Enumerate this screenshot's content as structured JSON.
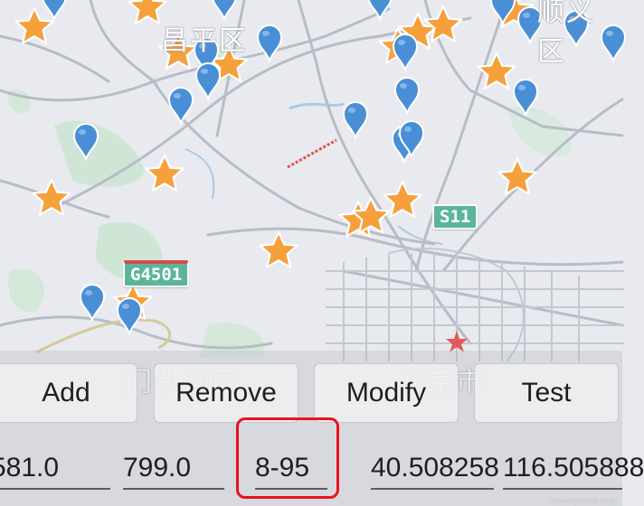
{
  "map": {
    "district_labels": [
      {
        "id": "changping",
        "text": "昌平区"
      },
      {
        "id": "shunyi",
        "text": "顺义区"
      },
      {
        "id": "mentougou",
        "text": "门头沟区"
      },
      {
        "id": "beijing",
        "text": "北京市"
      }
    ],
    "road_shields": [
      {
        "id": "s11",
        "text": "S11"
      },
      {
        "id": "g4501",
        "text": "G4501"
      }
    ],
    "attribution": "Development Build",
    "star_marker_count": 17,
    "pin_marker_count": 20,
    "colors": {
      "star_marker": "#f5a03b",
      "pin_marker": "#4a8fd6",
      "capital_star": "#e25a5a",
      "shield": "#5bb59a"
    }
  },
  "toolbar": {
    "add_label": "Add",
    "remove_label": "Remove",
    "modify_label": "Modify",
    "test_label": "Test"
  },
  "fields": {
    "field1_value": "581.0",
    "field2_value": "799.0",
    "field3_value": "8-95",
    "field4_value": "40.508258",
    "field5_value": "116.505888"
  },
  "highlight": {
    "target": "field3",
    "color": "#e8141c"
  }
}
